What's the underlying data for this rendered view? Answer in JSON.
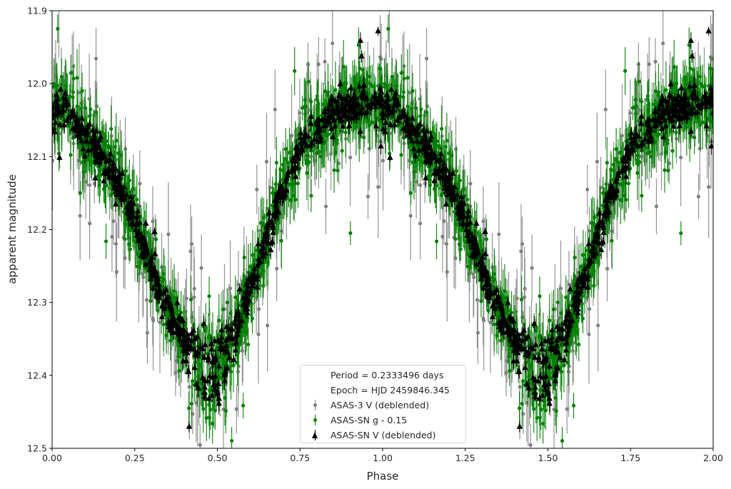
{
  "chart_data": {
    "type": "scatter",
    "title": "",
    "xlabel": "Phase",
    "ylabel": "apparent magnitude",
    "xlim": [
      0.0,
      2.0
    ],
    "ylim": [
      12.5,
      11.9
    ],
    "y_inverted": true,
    "grid": false,
    "legend_position": "lower center",
    "x_ticks": [
      "0.00",
      "0.25",
      "0.50",
      "0.75",
      "1.00",
      "1.25",
      "1.50",
      "1.75",
      "2.00"
    ],
    "y_ticks": [
      "11.9",
      "12.0",
      "12.1",
      "12.2",
      "12.3",
      "12.4",
      "12.5"
    ],
    "annotations": [
      "Period = 0.2333496 days",
      "Epoch = HJD 2459846.345"
    ],
    "light_curve_model": {
      "description": "Phase-folded light curve shown twice (phase 0-2); maximum (brightest) near phase 0.0/1.0/2.0 at ~12.02 mag, minimum near phase 0.45-0.5 and 1.45-1.5 at ~12.34-12.42 mag (split branch)",
      "phase": [
        0.0,
        0.05,
        0.1,
        0.15,
        0.2,
        0.25,
        0.3,
        0.35,
        0.4,
        0.45,
        0.5,
        0.55,
        0.6,
        0.65,
        0.7,
        0.75,
        0.8,
        0.85,
        0.9,
        0.95,
        1.0
      ],
      "magnitude": [
        12.03,
        12.04,
        12.07,
        12.1,
        12.14,
        12.19,
        12.25,
        12.31,
        12.35,
        12.37,
        12.37,
        12.34,
        12.28,
        12.21,
        12.14,
        12.09,
        12.06,
        12.04,
        12.03,
        12.025,
        12.025
      ]
    },
    "series": [
      {
        "name": "ASAS-3 V (deblended)",
        "color": "#808080",
        "marker": "circle",
        "error_bars": true,
        "typical_error": 0.045,
        "scatter": 0.05,
        "count_per_cycle": 220
      },
      {
        "name": "ASAS-SN g - 0.15",
        "color": "#008000",
        "marker": "circle",
        "error_bars": true,
        "typical_error": 0.025,
        "scatter": 0.022,
        "count_per_cycle": 900
      },
      {
        "name": "ASAS-SN V (deblended)",
        "color": "#000000",
        "marker": "triangle-up",
        "error_bars": true,
        "typical_error": 0.008,
        "scatter": 0.012,
        "count_per_cycle": 700
      }
    ]
  },
  "legend": {
    "period_label": "Period = 0.2333496 days",
    "epoch_label": "Epoch = HJD 2459846.345",
    "items": [
      {
        "label": "ASAS-3 V (deblended)",
        "color": "#808080",
        "marker": "circle"
      },
      {
        "label": "ASAS-SN g - 0.15",
        "color": "#008000",
        "marker": "circle"
      },
      {
        "label": "ASAS-SN V (deblended)",
        "color": "#000000",
        "marker": "triangle"
      }
    ]
  },
  "axes": {
    "xlabel": "Phase",
    "ylabel": "apparent magnitude"
  }
}
